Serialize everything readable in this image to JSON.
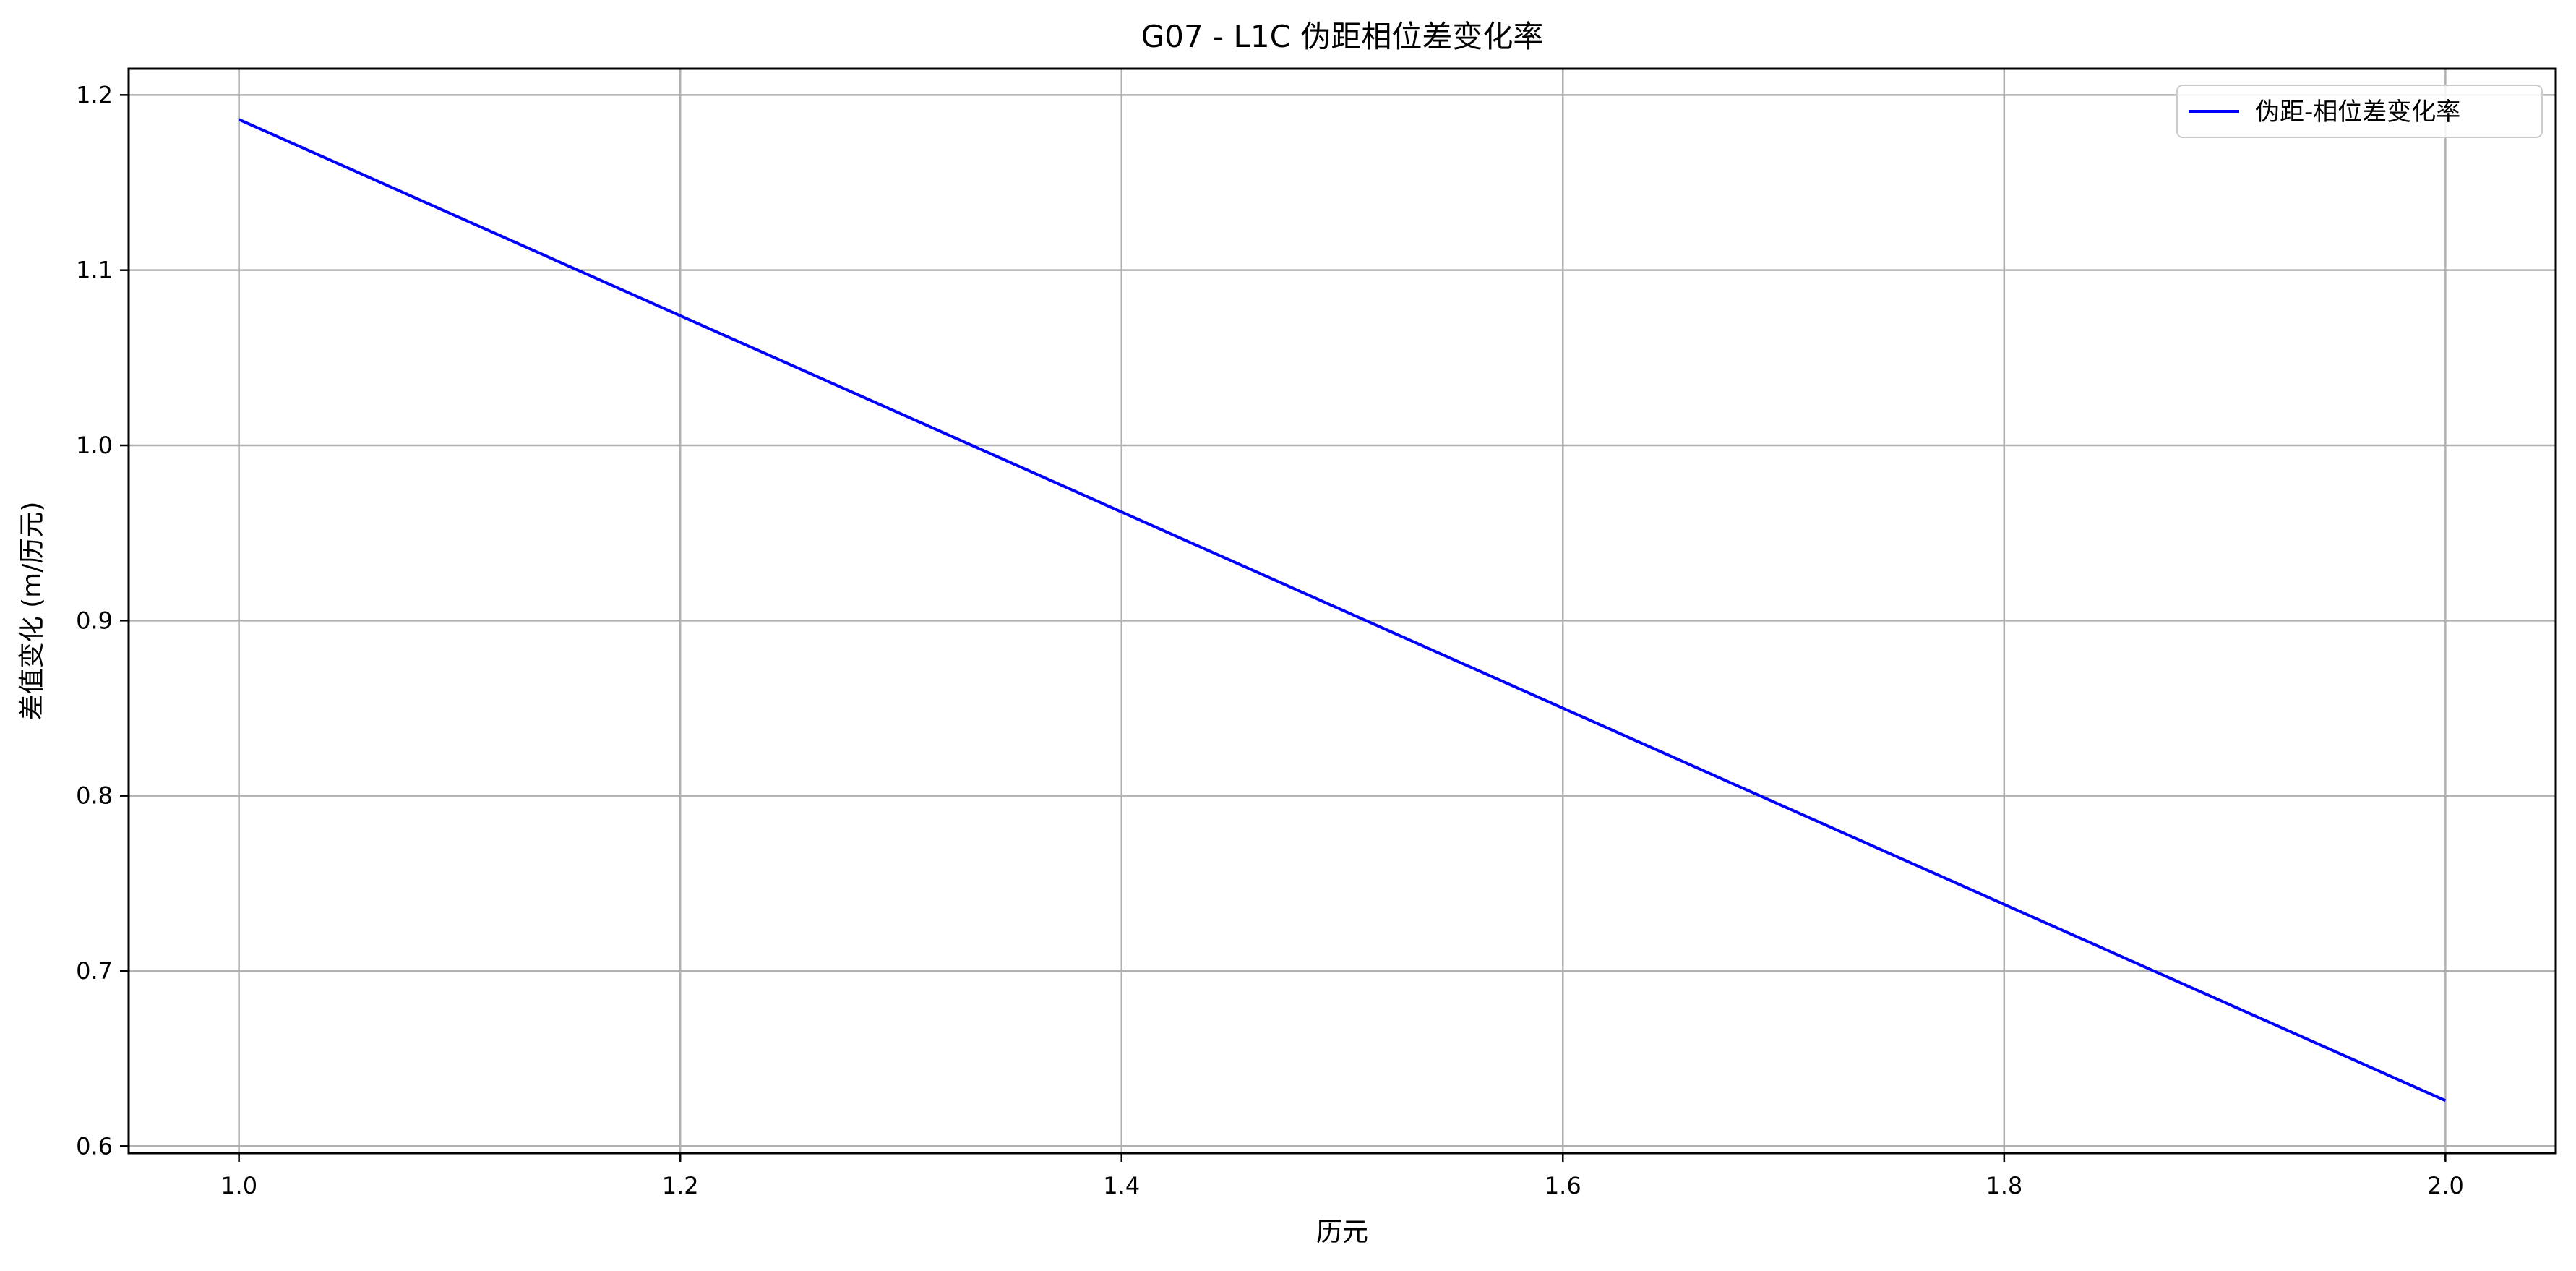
{
  "chart_data": {
    "type": "line",
    "title": "G07 - L1C 伪距相位差变化率",
    "xlabel": "历元",
    "ylabel": "差值变化 (m/历元)",
    "xlim": [
      0.95,
      2.05
    ],
    "ylim": [
      0.596,
      1.215
    ],
    "xticks": [
      1.0,
      1.2,
      1.4,
      1.6,
      1.8,
      2.0
    ],
    "xtick_labels": [
      "1.0",
      "1.2",
      "1.4",
      "1.6",
      "1.8",
      "2.0"
    ],
    "yticks": [
      0.6,
      0.7,
      0.8,
      0.9,
      1.0,
      1.1,
      1.2
    ],
    "ytick_labels": [
      "0.6",
      "0.7",
      "0.8",
      "0.9",
      "1.0",
      "1.1",
      "1.2"
    ],
    "grid": true,
    "legend_position": "top-right",
    "series": [
      {
        "name": "伪距-相位差变化率",
        "color": "#0000ff",
        "x": [
          1.0,
          2.0
        ],
        "y": [
          1.186,
          0.626
        ]
      }
    ]
  }
}
